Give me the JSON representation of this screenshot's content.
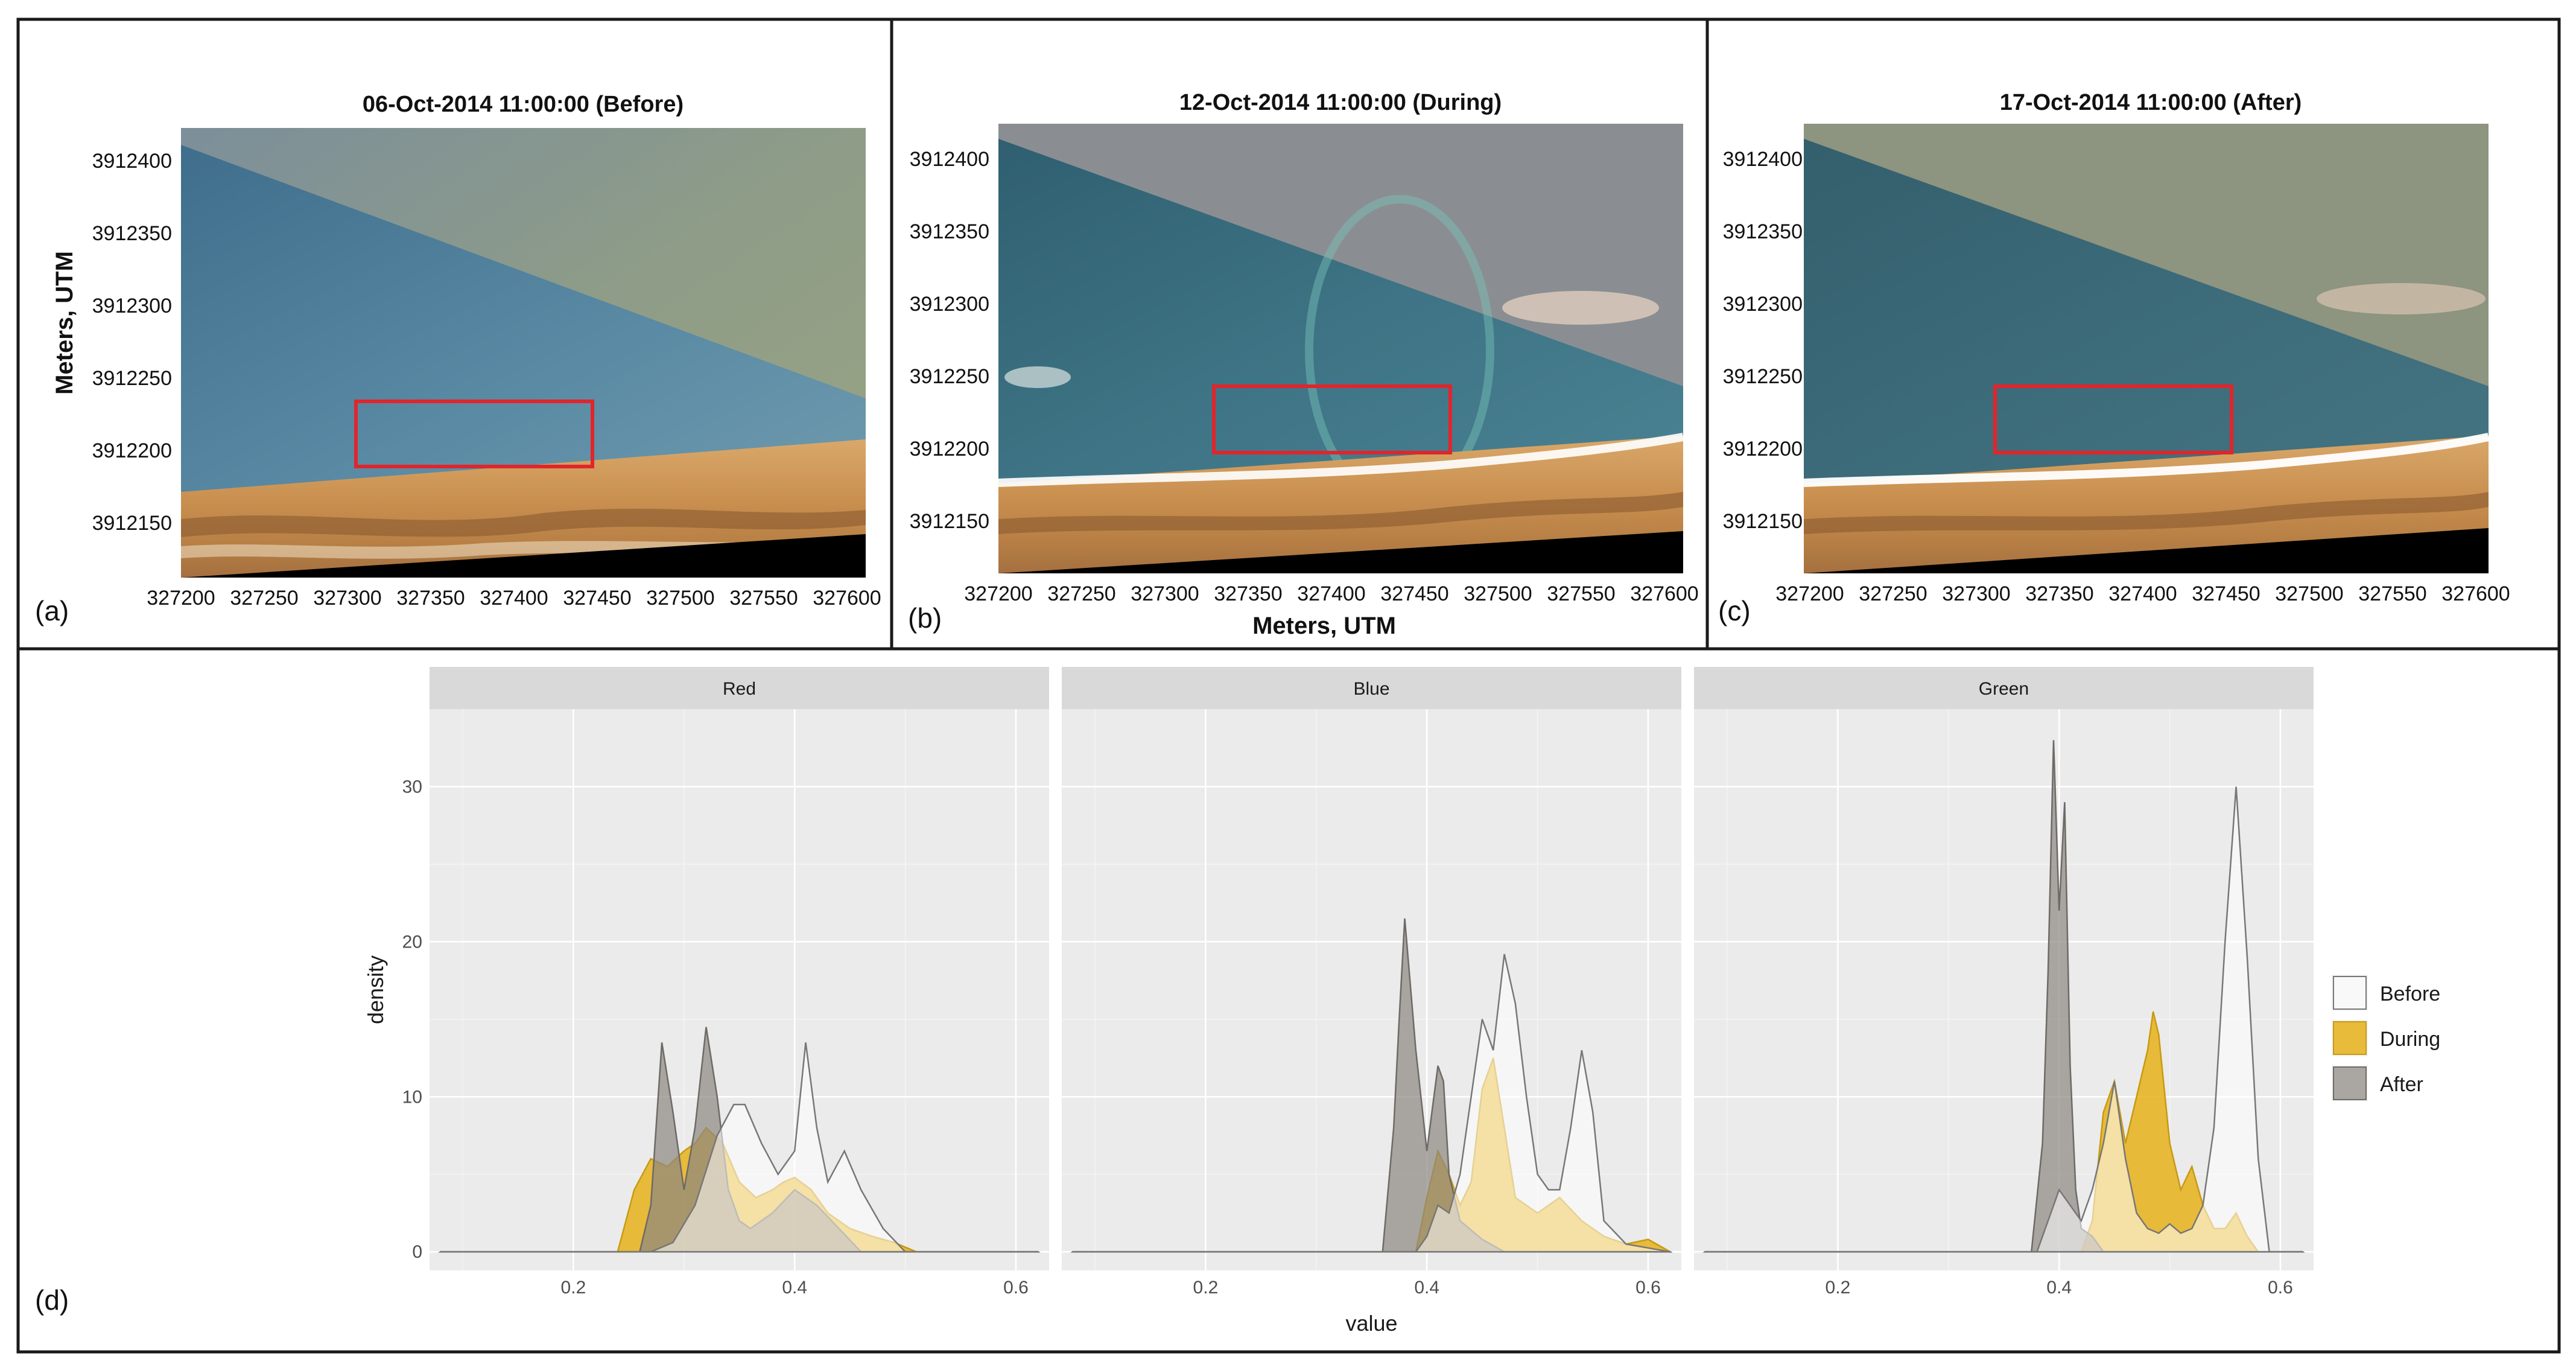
{
  "top_panels": [
    {
      "letter": "(a)",
      "title": "06-Oct-2014 11:00:00 (Before)",
      "y_ticks": [
        "3912400",
        "3912350",
        "3912300",
        "3912250",
        "3912200",
        "3912150"
      ],
      "x_ticks": [
        "327200",
        "327250",
        "327300",
        "327350",
        "327400",
        "327450",
        "327500",
        "327550",
        "327600"
      ]
    },
    {
      "letter": "(b)",
      "title": "12-Oct-2014 11:00:00 (During)",
      "y_ticks": [
        "3912400",
        "3912350",
        "3912300",
        "3912250",
        "3912200",
        "3912150"
      ],
      "x_ticks": [
        "327200",
        "327250",
        "327300",
        "327350",
        "327400",
        "327450",
        "327500",
        "327550",
        "327600"
      ]
    },
    {
      "letter": "(c)",
      "title": "17-Oct-2014 11:00:00 (After)",
      "y_ticks": [
        "3912400",
        "3912350",
        "3912300",
        "3912250",
        "3912200",
        "3912150"
      ],
      "x_ticks": [
        "327200",
        "327250",
        "327300",
        "327350",
        "327400",
        "327450",
        "327500",
        "327550",
        "327600"
      ]
    }
  ],
  "top_axes": {
    "ylabel": "Meters, UTM",
    "xlabel": "Meters, UTM"
  },
  "density_panel_letter": "(d)",
  "chart_data": {
    "type": "area",
    "facets": [
      "Red",
      "Blue",
      "Green"
    ],
    "xlabel": "value",
    "ylabel": "density",
    "xlim": [
      0.07,
      0.63
    ],
    "ylim": [
      -1.2,
      35
    ],
    "x_ticks": [
      0.2,
      0.4,
      0.6
    ],
    "y_ticks": [
      0,
      10,
      20,
      30
    ],
    "grid": true,
    "legend_position": "right",
    "legend": [
      {
        "name": "Before",
        "fill": "#ffffff",
        "opacity": 0.55,
        "line": "#777777"
      },
      {
        "name": "During",
        "fill": "#e8b21a",
        "opacity": 0.85,
        "line": "#c79a12"
      },
      {
        "name": "After",
        "fill": "#8c8782",
        "opacity": 0.7,
        "line": "#6e6a66"
      }
    ],
    "panels": [
      {
        "facet": "Red",
        "series": [
          {
            "name": "Before",
            "x": [
              0.08,
              0.27,
              0.29,
              0.31,
              0.33,
              0.345,
              0.355,
              0.37,
              0.385,
              0.4,
              0.41,
              0.42,
              0.43,
              0.445,
              0.46,
              0.48,
              0.5,
              0.62
            ],
            "y": [
              0,
              0,
              0.6,
              3,
              7.5,
              9.5,
              9.5,
              7,
              5,
              6.5,
              13.5,
              8,
              4.5,
              6.5,
              4,
              1.5,
              0,
              0
            ]
          },
          {
            "name": "During",
            "x": [
              0.08,
              0.24,
              0.255,
              0.27,
              0.285,
              0.3,
              0.31,
              0.32,
              0.335,
              0.35,
              0.365,
              0.38,
              0.39,
              0.4,
              0.415,
              0.43,
              0.45,
              0.47,
              0.49,
              0.51,
              0.62
            ],
            "y": [
              0,
              0,
              4,
              6,
              5.5,
              6.5,
              7,
              8,
              7,
              4.5,
              3.5,
              4,
              4.5,
              4.8,
              4,
              2.5,
              1.5,
              1,
              0.6,
              0,
              0
            ]
          },
          {
            "name": "After",
            "x": [
              0.08,
              0.26,
              0.27,
              0.28,
              0.29,
              0.3,
              0.31,
              0.32,
              0.33,
              0.34,
              0.35,
              0.36,
              0.38,
              0.4,
              0.42,
              0.44,
              0.46,
              0.62
            ],
            "y": [
              0,
              0,
              3,
              13.5,
              9,
              4,
              8,
              14.5,
              10,
              4,
              2,
              1.5,
              2.5,
              4,
              3,
              1.5,
              0,
              0
            ]
          }
        ]
      },
      {
        "facet": "Blue",
        "series": [
          {
            "name": "Before",
            "x": [
              0.08,
              0.39,
              0.4,
              0.41,
              0.42,
              0.43,
              0.44,
              0.45,
              0.46,
              0.47,
              0.48,
              0.49,
              0.5,
              0.51,
              0.52,
              0.53,
              0.54,
              0.55,
              0.56,
              0.58,
              0.62
            ],
            "y": [
              0,
              0,
              1,
              3,
              2.5,
              5,
              10,
              15,
              13,
              19.2,
              16,
              10,
              5,
              4,
              4,
              8,
              13,
              9,
              2,
              0.5,
              0
            ]
          },
          {
            "name": "During",
            "x": [
              0.08,
              0.39,
              0.4,
              0.41,
              0.42,
              0.43,
              0.44,
              0.45,
              0.46,
              0.47,
              0.48,
              0.5,
              0.52,
              0.54,
              0.56,
              0.58,
              0.6,
              0.62
            ],
            "y": [
              0,
              0,
              3.5,
              6.5,
              5,
              3,
              4.5,
              10.5,
              12.5,
              8,
              3.5,
              2.5,
              3.5,
              2,
              1,
              0.5,
              0.8,
              0
            ]
          },
          {
            "name": "After",
            "x": [
              0.08,
              0.36,
              0.37,
              0.375,
              0.38,
              0.39,
              0.4,
              0.41,
              0.415,
              0.42,
              0.43,
              0.45,
              0.47,
              0.62
            ],
            "y": [
              0,
              0,
              8,
              15,
              21.5,
              13,
              6.5,
              12,
              11,
              5,
              2,
              0.8,
              0,
              0
            ]
          }
        ]
      },
      {
        "facet": "Green",
        "series": [
          {
            "name": "Before",
            "x": [
              0.08,
              0.38,
              0.39,
              0.4,
              0.41,
              0.42,
              0.43,
              0.44,
              0.45,
              0.46,
              0.47,
              0.48,
              0.49,
              0.5,
              0.51,
              0.52,
              0.53,
              0.54,
              0.55,
              0.56,
              0.57,
              0.58,
              0.59,
              0.62
            ],
            "y": [
              0,
              0,
              2,
              4,
              3,
              2,
              4,
              7,
              11,
              6,
              2.5,
              1.5,
              1.2,
              1.8,
              1.2,
              1.5,
              3,
              8,
              20,
              30,
              19,
              6,
              0,
              0
            ]
          },
          {
            "name": "During",
            "x": [
              0.08,
              0.42,
              0.43,
              0.44,
              0.45,
              0.46,
              0.47,
              0.48,
              0.485,
              0.49,
              0.5,
              0.51,
              0.52,
              0.53,
              0.54,
              0.55,
              0.56,
              0.57,
              0.58,
              0.62
            ],
            "y": [
              0,
              0,
              2,
              9,
              11,
              7,
              10,
              13,
              15.5,
              14,
              7,
              4,
              5.5,
              3,
              1.5,
              1.5,
              2.5,
              1,
              0,
              0
            ]
          },
          {
            "name": "After",
            "x": [
              0.08,
              0.375,
              0.385,
              0.39,
              0.395,
              0.4,
              0.405,
              0.41,
              0.415,
              0.42,
              0.43,
              0.44,
              0.62
            ],
            "y": [
              0,
              0,
              7,
              18,
              33,
              22,
              29,
              12,
              4,
              1.5,
              1,
              0,
              0
            ]
          }
        ]
      }
    ]
  }
}
